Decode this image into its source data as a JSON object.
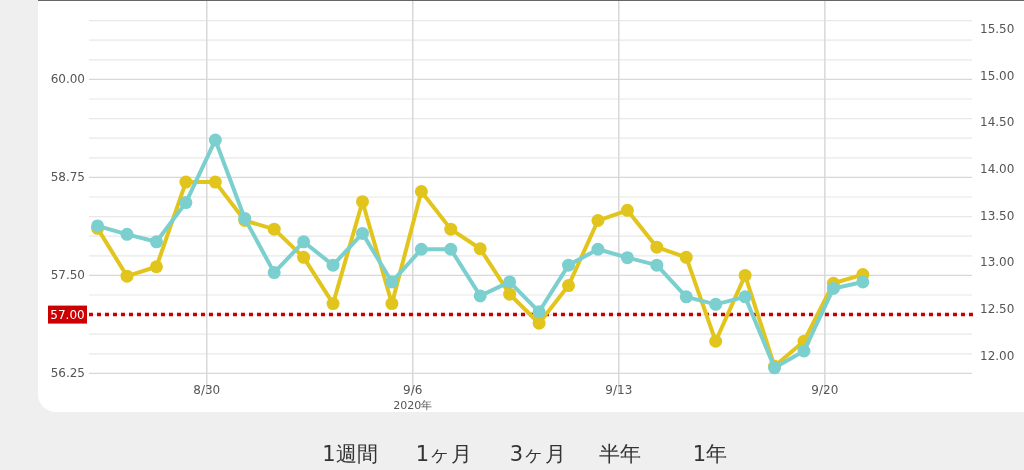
{
  "chart_data": {
    "type": "line",
    "x": [
      "2020-08-26T07:00",
      "2020-08-27T07:00",
      "2020-08-28T07:00",
      "2020-08-29T07:00",
      "2020-08-30T07:00",
      "2020-08-31T07:00",
      "2020-09-01T07:00",
      "2020-09-02T07:00",
      "2020-09-03T07:00",
      "2020-09-04T07:00",
      "2020-09-05T07:00",
      "2020-09-06T07:00",
      "2020-09-07T07:00",
      "2020-09-08T07:00",
      "2020-09-09T07:00",
      "2020-09-10T07:00",
      "2020-09-11T07:00",
      "2020-09-12T07:00",
      "2020-09-13T07:00",
      "2020-09-14T07:00",
      "2020-09-15T07:00",
      "2020-09-16T07:00",
      "2020-09-17T07:00",
      "2020-09-18T07:00",
      "2020-09-19T07:00",
      "2020-09-20T07:00",
      "2020-09-21T07:00"
    ],
    "series": [
      {
        "color": "#e2c51c",
        "values": [
          58.1,
          57.49,
          57.61,
          58.69,
          58.69,
          58.2,
          58.09,
          57.73,
          57.14,
          58.44,
          57.14,
          58.57,
          58.09,
          57.84,
          57.26,
          56.89,
          57.37,
          58.2,
          58.33,
          57.86,
          57.73,
          56.66,
          57.5,
          56.34,
          56.66,
          57.4,
          57.51
        ]
      },
      {
        "color": "#7ccfcf",
        "axis": "y2",
        "values": [
          13.39,
          13.3,
          13.22,
          13.64,
          14.31,
          13.47,
          12.89,
          13.22,
          12.97,
          13.31,
          12.79,
          13.14,
          13.14,
          12.64,
          12.79,
          12.47,
          12.97,
          13.14,
          13.05,
          12.97,
          12.63,
          12.55,
          12.63,
          11.87,
          12.05,
          12.72,
          12.79
        ]
      }
    ],
    "xlim": [
      "2020-08-26",
      "2020-09-25"
    ],
    "xticks": [
      {
        "value": "2020-08-30",
        "label": "8/30"
      },
      {
        "value": "2020-09-06",
        "label": "9/6\n2020年"
      },
      {
        "value": "2020-09-13",
        "label": "9/13"
      },
      {
        "value": "2020-09-20",
        "label": "9/20"
      }
    ],
    "ylim": [
      56.0,
      61.0
    ],
    "yticks": [
      {
        "value": 56.25,
        "label": "56.25"
      },
      {
        "value": 56.5,
        "label": null
      },
      {
        "value": 56.75,
        "label": null
      },
      {
        "value": 57.0,
        "label": null
      },
      {
        "value": 57.25,
        "label": null
      },
      {
        "value": 57.5,
        "label": "57.50"
      },
      {
        "value": 57.75,
        "label": null
      },
      {
        "value": 58.0,
        "label": null
      },
      {
        "value": 58.25,
        "label": null
      },
      {
        "value": 58.5,
        "label": null
      },
      {
        "value": 58.75,
        "label": "58.75"
      },
      {
        "value": 59.0,
        "label": null
      },
      {
        "value": 59.25,
        "label": null
      },
      {
        "value": 59.5,
        "label": null
      },
      {
        "value": 59.75,
        "label": null
      },
      {
        "value": 60.0,
        "label": "60.00"
      },
      {
        "value": 60.25,
        "label": null
      },
      {
        "value": 60.5,
        "label": null
      },
      {
        "value": 60.75,
        "label": null
      }
    ],
    "y2lim": [
      11.6,
      15.8
    ],
    "y2ticks": [
      {
        "value": 12.0,
        "label": "12.00"
      },
      {
        "value": 12.5,
        "label": "12.50"
      },
      {
        "value": 13.0,
        "label": "13.00"
      },
      {
        "value": 13.5,
        "label": "13.50"
      },
      {
        "value": 14.0,
        "label": "14.00"
      },
      {
        "value": 14.5,
        "label": "14.50"
      },
      {
        "value": 15.0,
        "label": "15.00"
      },
      {
        "value": 15.5,
        "label": "15.50"
      }
    ],
    "grid": true,
    "marker": "circle",
    "line_style": "solid",
    "ref_lines": [
      {
        "axis": "y",
        "value": 57.0,
        "label": "57.00",
        "color": "#cc0000",
        "line_style": "dotted"
      }
    ],
    "annotations": [
      "1週間",
      "1ヶ月",
      "3ヶ月",
      "半年",
      "1年"
    ]
  }
}
